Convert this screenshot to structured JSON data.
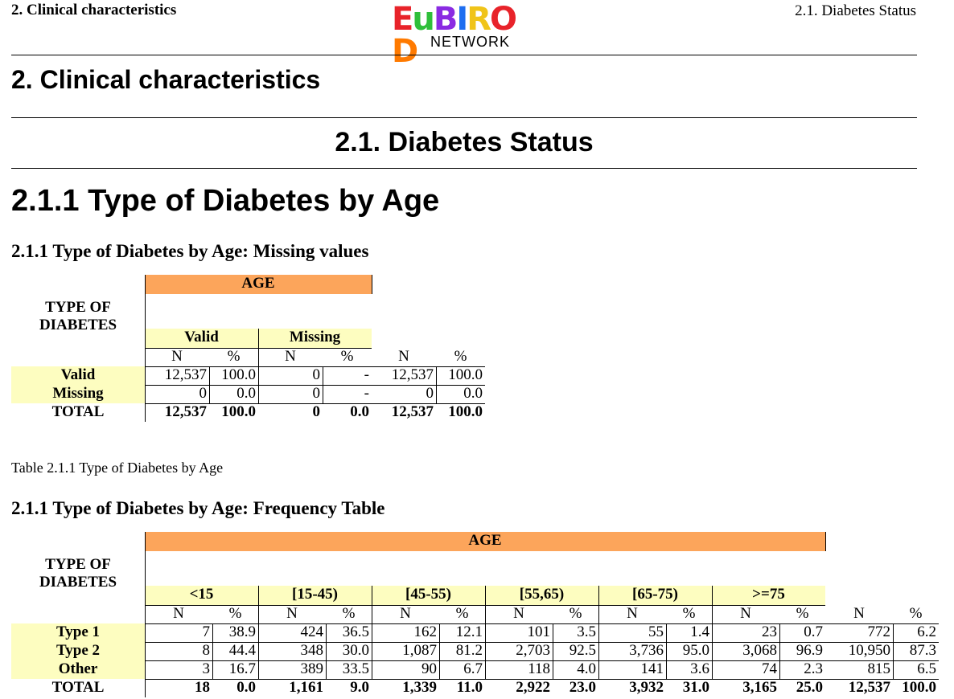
{
  "header": {
    "left": "2. Clinical characteristics",
    "right": "2.1. Diabetes Status",
    "logo_letters": [
      "E",
      "u",
      "B",
      "I",
      "R",
      "O",
      "D"
    ],
    "logo_colors": [
      "#e8232a",
      "#2fbf3a",
      "#8a2be2",
      "#1e6ef0",
      "#f0c419",
      "#e8232a",
      "#ff7a00"
    ],
    "logo_subtitle": "NETWORK"
  },
  "chapter_title": "2. Clinical characteristics",
  "section_title": "2.1. Diabetes Status",
  "subsection_title": "2.1.1 Type of Diabetes by Age",
  "missing_table": {
    "title": "2.1.1 Type of Diabetes by Age: Missing values",
    "var_header": "AGE",
    "row_header": [
      "TYPE OF",
      "DIABETES"
    ],
    "groups": [
      "Valid",
      "Missing"
    ],
    "col_n": "N",
    "col_pct": "%",
    "rows": [
      {
        "label": "Valid",
        "cells": [
          "12,537",
          "100.0",
          "0",
          "-",
          "12,537",
          "100.0"
        ]
      },
      {
        "label": "Missing",
        "cells": [
          "0",
          "0.0",
          "0",
          "-",
          "0",
          "0.0"
        ]
      },
      {
        "label": "TOTAL",
        "cells": [
          "12,537",
          "100.0",
          "0",
          "0.0",
          "12,537",
          "100.0"
        ]
      }
    ]
  },
  "caption": "Table 2.1.1 Type of Diabetes by Age",
  "freq_table": {
    "title": "2.1.1 Type of Diabetes by Age: Frequency Table",
    "var_header": "AGE",
    "row_header": [
      "TYPE OF",
      "DIABETES"
    ],
    "groups": [
      "<15",
      "[15-45)",
      "[45-55)",
      "[55,65)",
      "[65-75)",
      ">=75"
    ],
    "col_n": "N",
    "col_pct": "%",
    "rows": [
      {
        "label": "Type 1",
        "cells": [
          "7",
          "38.9",
          "424",
          "36.5",
          "162",
          "12.1",
          "101",
          "3.5",
          "55",
          "1.4",
          "23",
          "0.7",
          "772",
          "6.2"
        ]
      },
      {
        "label": "Type 2",
        "cells": [
          "8",
          "44.4",
          "348",
          "30.0",
          "1,087",
          "81.2",
          "2,703",
          "92.5",
          "3,736",
          "95.0",
          "3,068",
          "96.9",
          "10,950",
          "87.3"
        ]
      },
      {
        "label": "Other",
        "cells": [
          "3",
          "16.7",
          "389",
          "33.5",
          "90",
          "6.7",
          "118",
          "4.0",
          "141",
          "3.6",
          "74",
          "2.3",
          "815",
          "6.5"
        ]
      },
      {
        "label": "TOTAL",
        "cells": [
          "18",
          "0.0",
          "1,161",
          "9.0",
          "1,339",
          "11.0",
          "2,922",
          "23.0",
          "3,932",
          "31.0",
          "3,165",
          "25.0",
          "12,537",
          "100.0"
        ]
      }
    ]
  }
}
